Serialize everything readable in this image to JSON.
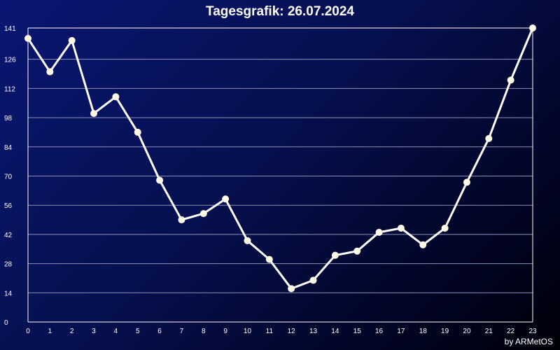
{
  "page": {
    "title": "Tagesgrafik: 26.07.2024",
    "credit": "by ARMetOS"
  },
  "colors": {
    "line": "#ffffff",
    "marker": "#fffbe6",
    "grid": "#8a90b8",
    "axis": "#ffffff"
  },
  "chart_data": {
    "type": "line",
    "title": "Tagesgrafik: 26.07.2024",
    "xlabel": "",
    "ylabel": "",
    "x": [
      0,
      1,
      2,
      3,
      4,
      5,
      6,
      7,
      8,
      9,
      10,
      11,
      12,
      13,
      14,
      15,
      16,
      17,
      18,
      19,
      20,
      21,
      22,
      23
    ],
    "y": [
      136,
      120,
      135,
      100,
      108,
      91,
      68,
      49,
      52,
      59,
      39,
      30,
      16,
      20,
      32,
      34,
      43,
      45,
      37,
      45,
      67,
      88,
      116,
      141
    ],
    "ylim": [
      0,
      141
    ],
    "yticks": [
      0,
      14,
      28,
      42,
      56,
      70,
      84,
      98,
      112,
      126,
      141
    ],
    "xticks": [
      0,
      1,
      2,
      3,
      4,
      5,
      6,
      7,
      8,
      9,
      10,
      11,
      12,
      13,
      14,
      15,
      16,
      17,
      18,
      19,
      20,
      21,
      22,
      23
    ],
    "grid": true,
    "legend": "none"
  }
}
